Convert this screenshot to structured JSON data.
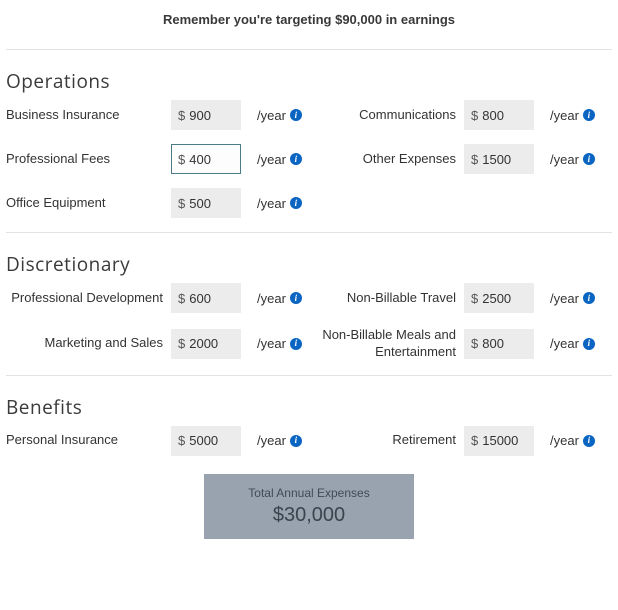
{
  "target_message": "Remember you're targeting $90,000 in earnings",
  "currency_symbol": "$",
  "per_unit": "/year",
  "info_glyph": "i",
  "sections": {
    "operations": {
      "title": "Operations",
      "items": {
        "business_insurance": {
          "label": "Business Insurance",
          "value": "900"
        },
        "communications": {
          "label": "Communications",
          "value": "800"
        },
        "professional_fees": {
          "label": "Professional Fees",
          "value": "400",
          "focused": true
        },
        "other_expenses": {
          "label": "Other Expenses",
          "value": "1500"
        },
        "office_equipment": {
          "label": "Office Equipment",
          "value": "500"
        }
      }
    },
    "discretionary": {
      "title": "Discretionary",
      "items": {
        "prof_dev": {
          "label": "Professional Development",
          "value": "600"
        },
        "nb_travel": {
          "label": "Non-Billable Travel",
          "value": "2500"
        },
        "marketing_sales": {
          "label": "Marketing and Sales",
          "value": "2000"
        },
        "nb_meals": {
          "label": "Non-Billable Meals and Entertainment",
          "value": "800"
        }
      }
    },
    "benefits": {
      "title": "Benefits",
      "items": {
        "personal_insurance": {
          "label": "Personal Insurance",
          "value": "5000"
        },
        "retirement": {
          "label": "Retirement",
          "value": "15000"
        }
      }
    }
  },
  "total": {
    "label": "Total Annual Expenses",
    "value": "$30,000"
  },
  "colors": {
    "info_icon_bg": "#0a65c2",
    "input_bg": "#ececec",
    "focused_border": "#4b7b88",
    "total_bg": "#98a3af",
    "divider": "#e2e2e2"
  }
}
